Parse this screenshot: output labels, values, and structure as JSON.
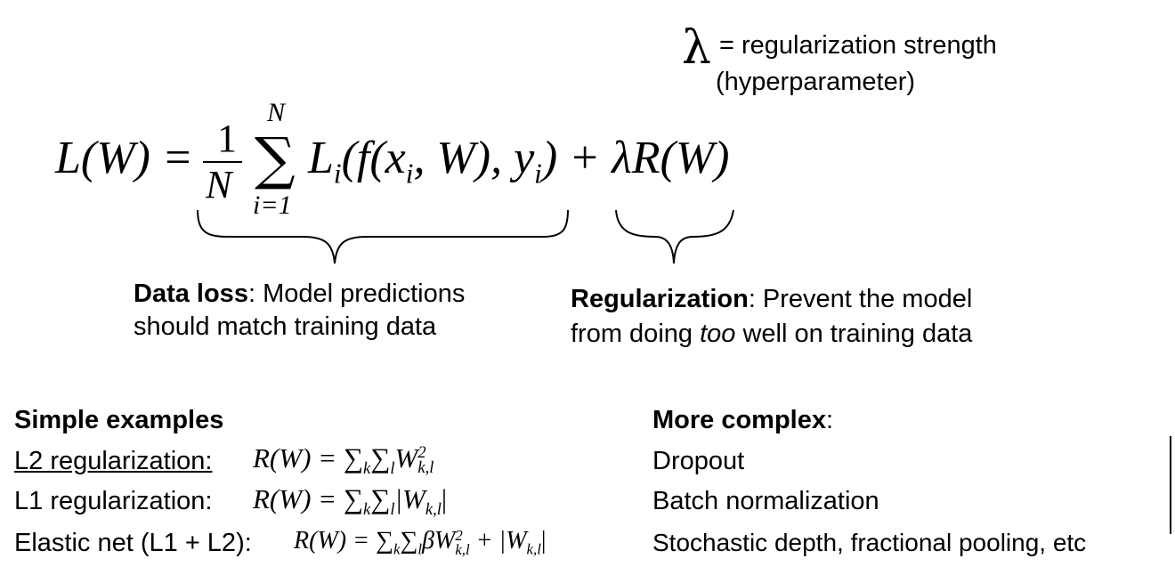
{
  "lambda_note": {
    "symbol": "λ",
    "line1": "= regularization strength",
    "line2": "(hyperparameter)"
  },
  "equation": {
    "lhs": "L(W) =",
    "frac_num": "1",
    "frac_den": "N",
    "sum_upper": "N",
    "sum_lower": "i=1",
    "body_start": "L",
    "body_start_sub": "i",
    "body_mid1": "(f(x",
    "body_mid1_sub": "i",
    "body_mid2": ", W), y",
    "body_mid2_sub": "i",
    "body_end": ") + λR(W)"
  },
  "data_loss": {
    "title": "Data loss",
    "rest1": ": Model predictions",
    "line2": "should match training data"
  },
  "regularization": {
    "title": "Regularization",
    "rest1": ": Prevent the model",
    "line2_pre": "from doing ",
    "line2_em": "too",
    "line2_post": " well on training data"
  },
  "simple": {
    "heading": "Simple examples",
    "l2_label": "L2 regularization:",
    "l1_label": "L1 regularization:",
    "en_label": "Elastic net (L1 + L2):",
    "formula_prefix": "R(W) = ∑",
    "formula_k": "k",
    "formula_sum2": "∑",
    "formula_l": "l",
    "l2_term": "W",
    "l2_sup": "2",
    "l2_sub": "k,l",
    "l1_term": "|W",
    "l1_sub": "k,l",
    "l1_close": "|",
    "en_term": "βW",
    "en_sup": "2",
    "en_sub": "k,l",
    "en_plus": " + |W",
    "en_sub2": "k,l",
    "en_close": "|"
  },
  "complex": {
    "heading": "More complex",
    "heading_colon": ":",
    "items": [
      "Dropout",
      "Batch normalization",
      "Stochastic depth, fractional pooling, etc"
    ]
  }
}
